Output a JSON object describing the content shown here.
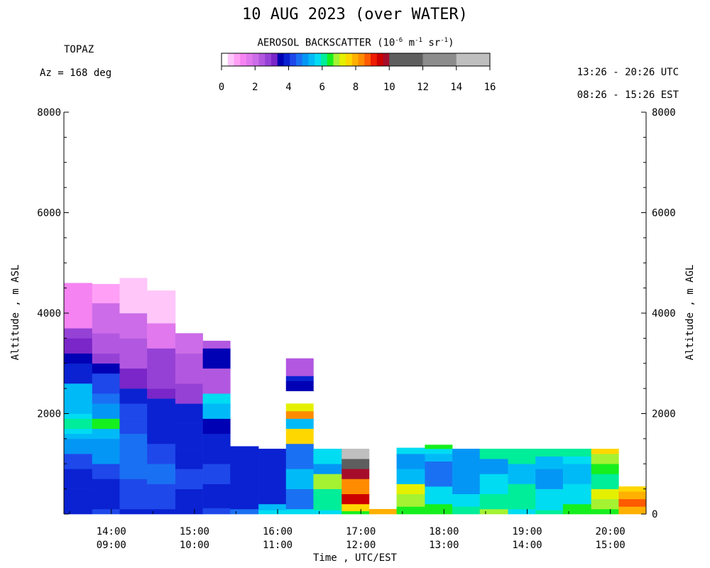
{
  "chart_data": {
    "type": "heatmap",
    "title": "10 AUG 2023 (over WATER)",
    "site": "TOPAZ",
    "azimuth": "Az = 168 deg",
    "time_utc": "13:26 - 20:26 UTC",
    "time_est": "08:26 - 15:26 EST",
    "colorbar": {
      "title_prefix": "AEROSOL BACKSCATTER (10",
      "title_exp1": "-6",
      "title_mid": " m",
      "title_exp2": "-1",
      "title_mid2": " sr",
      "title_exp3": "-1",
      "title_suffix": ")",
      "ticks": [
        "0",
        "2",
        "4",
        "6",
        "8",
        "10",
        "12",
        "14",
        "16"
      ],
      "colors": [
        "#ffffff",
        "#ffc6fa",
        "#ffa0f6",
        "#f583f2",
        "#e178ee",
        "#cc6ce8",
        "#b258e0",
        "#9641d6",
        "#7a26c8",
        "#0000b4",
        "#0a22d2",
        "#1e48ea",
        "#1a70f2",
        "#0496f5",
        "#00baf8",
        "#00dcf2",
        "#00ed9a",
        "#16ef1e",
        "#a4f232",
        "#e4f000",
        "#ffd700",
        "#ffb000",
        "#ff8c00",
        "#ff5a00",
        "#ee1c00",
        "#cc0000",
        "#a60c2a",
        "#5e5e5e",
        "#8c8c8c",
        "#bfbfbf"
      ]
    },
    "ylabel_left": "Altitude , m ASL",
    "ylabel_right": "Altitude , m AGL",
    "xlabel": "Time , UTC/EST",
    "y_range": [
      0,
      8000
    ],
    "y_ticks_left": [
      "8000",
      "6000",
      "4000",
      "2000"
    ],
    "y_ticks_right": [
      "8000",
      "6000",
      "4000",
      "2000",
      "0"
    ],
    "x_range_utc_hours": [
      13.43,
      20.43
    ],
    "x_ticks": [
      {
        "utc": "14:00",
        "est": "09:00",
        "hour": 14
      },
      {
        "utc": "15:00",
        "est": "10:00",
        "hour": 15
      },
      {
        "utc": "16:00",
        "est": "11:00",
        "hour": 16
      },
      {
        "utc": "17:00",
        "est": "12:00",
        "hour": 17
      },
      {
        "utc": "18:00",
        "est": "13:00",
        "hour": 18
      },
      {
        "utc": "19:00",
        "est": "14:00",
        "hour": 19
      },
      {
        "utc": "20:00",
        "est": "15:00",
        "hour": 20
      }
    ],
    "profiles": [
      {
        "t0": 13.43,
        "t1": 13.77,
        "layers": [
          [
            0,
            80,
            10
          ],
          [
            80,
            250,
            10
          ],
          [
            250,
            500,
            10
          ],
          [
            500,
            900,
            10
          ],
          [
            900,
            1200,
            11
          ],
          [
            1200,
            1500,
            13
          ],
          [
            1500,
            1600,
            14
          ],
          [
            1600,
            1700,
            15
          ],
          [
            1700,
            1900,
            16
          ],
          [
            1900,
            2000,
            15
          ],
          [
            2000,
            2600,
            14
          ],
          [
            2600,
            3000,
            10
          ],
          [
            3000,
            3200,
            9
          ],
          [
            3200,
            3500,
            8
          ],
          [
            3500,
            3700,
            7
          ],
          [
            3700,
            4600,
            3
          ]
        ]
      },
      {
        "t0": 13.77,
        "t1": 14.1,
        "layers": [
          [
            0,
            100,
            11
          ],
          [
            100,
            700,
            10
          ],
          [
            700,
            1000,
            11
          ],
          [
            1000,
            1500,
            13
          ],
          [
            1500,
            1700,
            14
          ],
          [
            1700,
            1900,
            17
          ],
          [
            1900,
            2200,
            13
          ],
          [
            2200,
            2400,
            12
          ],
          [
            2400,
            2800,
            11
          ],
          [
            2800,
            3000,
            9
          ],
          [
            3000,
            3200,
            7
          ],
          [
            3200,
            3600,
            6
          ],
          [
            3600,
            4200,
            5
          ],
          [
            4200,
            4580,
            2
          ]
        ]
      },
      {
        "t0": 14.1,
        "t1": 14.43,
        "layers": [
          [
            0,
            100,
            10
          ],
          [
            100,
            700,
            11
          ],
          [
            700,
            1100,
            12
          ],
          [
            1100,
            1600,
            12
          ],
          [
            1600,
            1900,
            11
          ],
          [
            1900,
            2200,
            11
          ],
          [
            2200,
            2500,
            10
          ],
          [
            2500,
            2900,
            8
          ],
          [
            2900,
            3200,
            6
          ],
          [
            3200,
            3500,
            6
          ],
          [
            3500,
            4000,
            5
          ],
          [
            4000,
            4700,
            1
          ]
        ]
      },
      {
        "t0": 14.43,
        "t1": 14.77,
        "layers": [
          [
            0,
            100,
            10
          ],
          [
            100,
            600,
            11
          ],
          [
            600,
            1000,
            12
          ],
          [
            1000,
            1400,
            11
          ],
          [
            1400,
            2000,
            10
          ],
          [
            2000,
            2300,
            10
          ],
          [
            2300,
            2500,
            8
          ],
          [
            2500,
            2900,
            7
          ],
          [
            2900,
            3300,
            7
          ],
          [
            3300,
            3800,
            4
          ],
          [
            3800,
            4450,
            1
          ]
        ]
      },
      {
        "t0": 14.77,
        "t1": 15.1,
        "layers": [
          [
            0,
            100,
            10
          ],
          [
            100,
            500,
            10
          ],
          [
            500,
            900,
            11
          ],
          [
            900,
            1300,
            10
          ],
          [
            1300,
            1800,
            10
          ],
          [
            1800,
            2200,
            10
          ],
          [
            2200,
            2600,
            7
          ],
          [
            2600,
            3200,
            6
          ],
          [
            3200,
            3600,
            5
          ]
        ]
      },
      {
        "t0": 15.1,
        "t1": 15.43,
        "layers": [
          [
            0,
            120,
            11
          ],
          [
            120,
            600,
            10
          ],
          [
            600,
            1000,
            11
          ],
          [
            1000,
            1600,
            10
          ],
          [
            1600,
            1900,
            9
          ],
          [
            1900,
            2200,
            14
          ],
          [
            2200,
            2400,
            15
          ],
          [
            2400,
            2900,
            6
          ],
          [
            2900,
            3300,
            9
          ],
          [
            3300,
            3450,
            6
          ]
        ]
      },
      {
        "t0": 15.43,
        "t1": 15.77,
        "layers": [
          [
            0,
            100,
            12
          ],
          [
            100,
            1350,
            10
          ]
        ]
      },
      {
        "t0": 15.77,
        "t1": 16.1,
        "layers": [
          [
            0,
            80,
            15
          ],
          [
            80,
            200,
            14
          ],
          [
            200,
            1300,
            10
          ]
        ]
      },
      {
        "t0": 16.1,
        "t1": 16.43,
        "layers": [
          [
            0,
            100,
            15
          ],
          [
            100,
            500,
            12
          ],
          [
            500,
            900,
            14
          ],
          [
            900,
            1400,
            12
          ],
          [
            1400,
            1700,
            20
          ],
          [
            1700,
            1900,
            14
          ],
          [
            1900,
            2050,
            22
          ],
          [
            2050,
            2200,
            19
          ],
          [
            2450,
            2650,
            9
          ],
          [
            2650,
            2750,
            10
          ],
          [
            2750,
            3100,
            6
          ]
        ]
      },
      {
        "t0": 16.43,
        "t1": 16.77,
        "layers": [
          [
            0,
            80,
            15
          ],
          [
            80,
            500,
            16
          ],
          [
            500,
            800,
            18
          ],
          [
            800,
            1000,
            13
          ],
          [
            1000,
            1300,
            15
          ]
        ]
      },
      {
        "t0": 16.77,
        "t1": 17.1,
        "layers": [
          [
            0,
            60,
            17
          ],
          [
            60,
            200,
            20
          ],
          [
            200,
            400,
            25
          ],
          [
            400,
            700,
            22
          ],
          [
            700,
            900,
            26
          ],
          [
            900,
            1100,
            27
          ],
          [
            1100,
            1300,
            29
          ]
        ]
      },
      {
        "t0": 17.1,
        "t1": 17.43,
        "layers": [
          [
            0,
            100,
            21
          ]
        ]
      },
      {
        "t0": 17.43,
        "t1": 17.77,
        "layers": [
          [
            0,
            150,
            17
          ],
          [
            150,
            400,
            18
          ],
          [
            400,
            600,
            19
          ],
          [
            600,
            900,
            14
          ],
          [
            900,
            1200,
            13
          ],
          [
            1200,
            1320,
            15
          ]
        ]
      },
      {
        "t0": 17.77,
        "t1": 18.1,
        "layers": [
          [
            0,
            200,
            17
          ],
          [
            200,
            550,
            15
          ],
          [
            550,
            1050,
            12
          ],
          [
            1050,
            1200,
            14
          ],
          [
            1200,
            1300,
            15
          ],
          [
            1300,
            1380,
            17
          ]
        ]
      },
      {
        "t0": 18.1,
        "t1": 18.43,
        "layers": [
          [
            0,
            150,
            16
          ],
          [
            150,
            400,
            15
          ],
          [
            400,
            1300,
            13
          ]
        ]
      },
      {
        "t0": 18.43,
        "t1": 18.77,
        "layers": [
          [
            0,
            100,
            18
          ],
          [
            100,
            400,
            16
          ],
          [
            400,
            800,
            15
          ],
          [
            800,
            1100,
            13
          ],
          [
            1100,
            1300,
            16
          ]
        ]
      },
      {
        "t0": 18.77,
        "t1": 19.1,
        "layers": [
          [
            0,
            100,
            15
          ],
          [
            100,
            600,
            16
          ],
          [
            600,
            1000,
            14
          ],
          [
            1000,
            1300,
            16
          ]
        ]
      },
      {
        "t0": 19.1,
        "t1": 19.43,
        "layers": [
          [
            0,
            80,
            16
          ],
          [
            80,
            500,
            15
          ],
          [
            500,
            900,
            13
          ],
          [
            900,
            1150,
            14
          ],
          [
            1150,
            1300,
            16
          ]
        ]
      },
      {
        "t0": 19.43,
        "t1": 19.77,
        "layers": [
          [
            0,
            200,
            17
          ],
          [
            200,
            600,
            15
          ],
          [
            600,
            1000,
            14
          ],
          [
            1000,
            1150,
            15
          ],
          [
            1150,
            1300,
            16
          ]
        ]
      },
      {
        "t0": 19.77,
        "t1": 20.1,
        "layers": [
          [
            0,
            100,
            17
          ],
          [
            100,
            300,
            18
          ],
          [
            300,
            500,
            19
          ],
          [
            500,
            800,
            16
          ],
          [
            800,
            1000,
            17
          ],
          [
            1000,
            1200,
            18
          ],
          [
            1200,
            1300,
            20
          ]
        ]
      },
      {
        "t0": 20.1,
        "t1": 20.43,
        "layers": [
          [
            0,
            150,
            21
          ],
          [
            150,
            300,
            23
          ],
          [
            300,
            450,
            21
          ],
          [
            450,
            550,
            20
          ]
        ]
      }
    ]
  }
}
